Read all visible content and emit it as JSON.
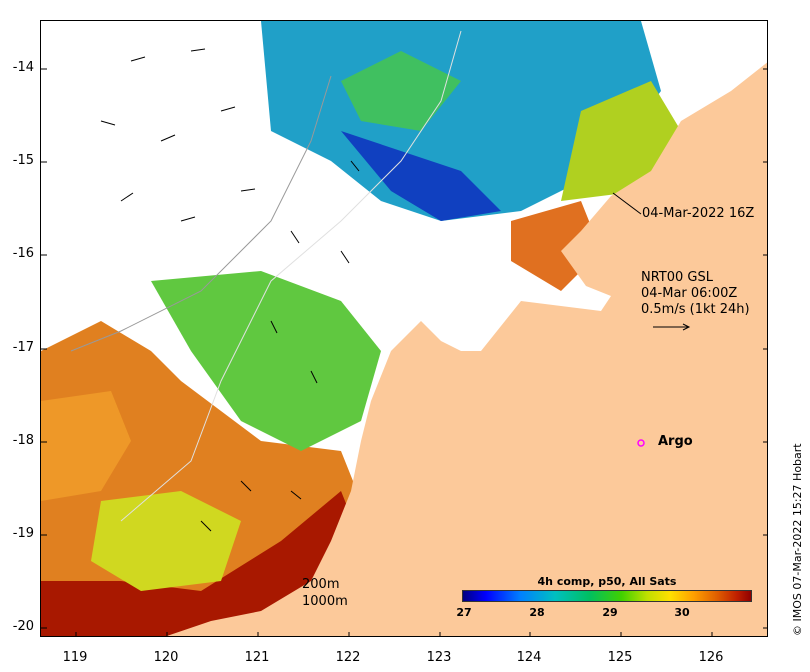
{
  "map": {
    "x_ticks": [
      "119",
      "120",
      "121",
      "122",
      "123",
      "124",
      "125",
      "126"
    ],
    "y_ticks": [
      "-14",
      "-15",
      "-16",
      "-17",
      "-18",
      "-19",
      "-20"
    ]
  },
  "annotations": {
    "satellite_time": "04-Mar-2022 16Z",
    "current_line1": "NRT00 GSL",
    "current_line2": "04-Mar 06:00Z",
    "current_line3": "0.5m/s (1kt 24h)",
    "argo_label": "Argo",
    "depth_200": "200m",
    "depth_1000": "1000m"
  },
  "colorbar": {
    "title": "4h comp, p50, All Sats",
    "ticks": [
      "27",
      "28",
      "29",
      "30"
    ]
  },
  "credit": "© IMOS 07-Mar-2022 15:27 Hobart",
  "colors": {
    "land": "#fcc99a",
    "argo_marker": "#ff00ff",
    "warm": "#c03000",
    "cool": "#0050d0",
    "mid": "#30c040"
  }
}
